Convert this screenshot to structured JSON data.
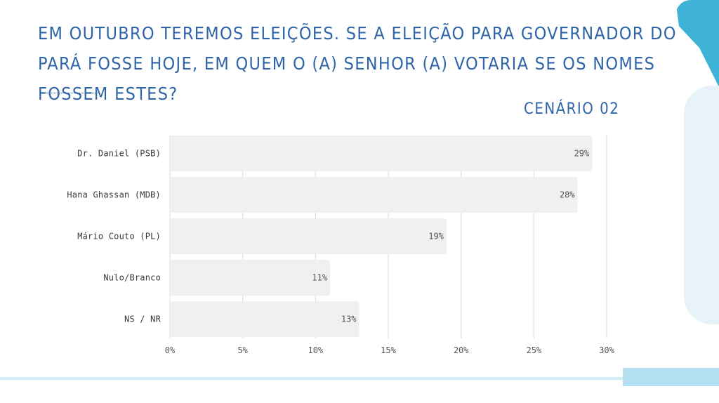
{
  "slide": {
    "question": "EM OUTUBRO TEREMOS ELEIÇÕES. SE A ELEIÇÃO PARA GOVERNADOR DO PARÁ FOSSE HOJE, EM QUEM O (A) SENHOR (A) VOTARIA SE OS NOMES FOSSEM ESTES?",
    "scenario": "CENÁRIO 02"
  },
  "colors": {
    "title": "#2e64a8",
    "bar": "#eef0f1",
    "gridline": "#d8d8d8",
    "accent_dark": "#3fb3d6",
    "accent_light": "#b4dff0"
  },
  "chart_data": {
    "type": "bar",
    "orientation": "horizontal",
    "categories": [
      "Dr. Daniel (PSB)",
      "Hana Ghassan (MDB)",
      "Mário Couto (PL)",
      "Nulo/Branco",
      "NS / NR"
    ],
    "values": [
      29,
      28,
      19,
      11,
      13
    ],
    "data_labels": [
      "29%",
      "28%",
      "19%",
      "11%",
      "13%"
    ],
    "xticks": [
      "0%",
      "5%",
      "10%",
      "15%",
      "20%",
      "25%",
      "30%"
    ],
    "xlim": [
      0,
      30
    ],
    "grid": true,
    "legend": "none"
  }
}
